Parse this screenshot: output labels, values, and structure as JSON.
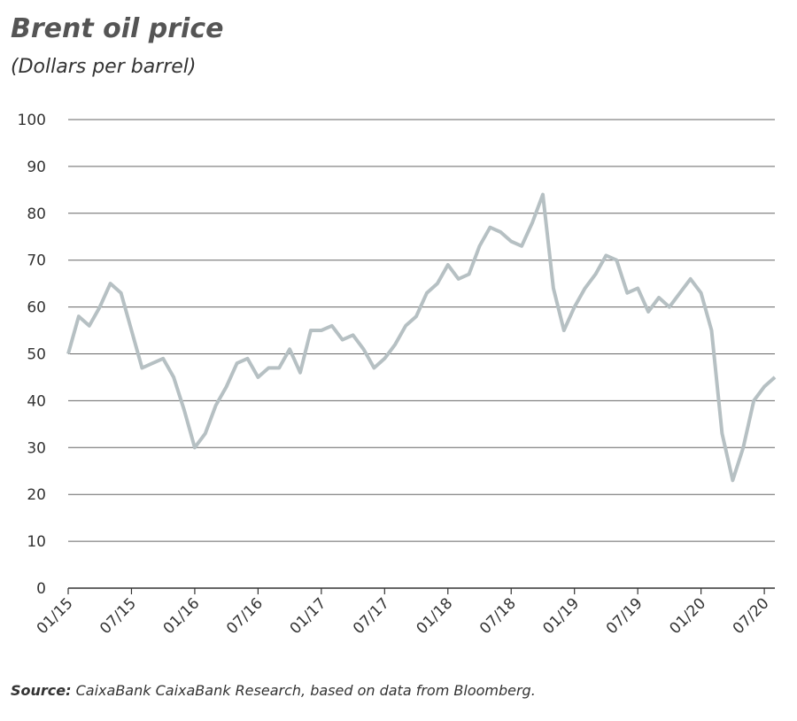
{
  "chart_data": {
    "type": "line",
    "title": "Brent oil price",
    "subtitle": "(Dollars per barrel)",
    "source_label": "Source:",
    "source": "CaixaBank CaixaBank Research, based on data from Bloomberg.",
    "x": [
      "01/15",
      "02/15",
      "03/15",
      "04/15",
      "05/15",
      "06/15",
      "07/15",
      "08/15",
      "09/15",
      "10/15",
      "11/15",
      "12/15",
      "01/16",
      "02/16",
      "03/16",
      "04/16",
      "05/16",
      "06/16",
      "07/16",
      "08/16",
      "09/16",
      "10/16",
      "11/16",
      "12/16",
      "01/17",
      "02/17",
      "03/17",
      "04/17",
      "05/17",
      "06/17",
      "07/17",
      "08/17",
      "09/17",
      "10/17",
      "11/17",
      "12/17",
      "01/18",
      "02/18",
      "03/18",
      "04/18",
      "05/18",
      "06/18",
      "07/18",
      "08/18",
      "09/18",
      "10/18",
      "11/18",
      "12/18",
      "01/19",
      "02/19",
      "03/19",
      "04/19",
      "05/19",
      "06/19",
      "07/19",
      "08/19",
      "09/19",
      "10/19",
      "11/19",
      "12/19",
      "01/20",
      "02/20",
      "03/20",
      "04/20",
      "05/20",
      "06/20",
      "07/20",
      "08/20"
    ],
    "series": [
      {
        "name": "Brent",
        "color": "#b6c0c3",
        "values": [
          50,
          58,
          56,
          60,
          65,
          63,
          55,
          47,
          48,
          49,
          45,
          38,
          30,
          33,
          39,
          43,
          48,
          49,
          45,
          47,
          47,
          51,
          46,
          55,
          55,
          56,
          53,
          54,
          51,
          47,
          49,
          52,
          56,
          58,
          63,
          65,
          69,
          66,
          67,
          73,
          77,
          76,
          74,
          73,
          78,
          84,
          64,
          55,
          60,
          64,
          67,
          71,
          70,
          63,
          64,
          59,
          62,
          60,
          63,
          66,
          63,
          55,
          33,
          23,
          30,
          40,
          43,
          45
        ]
      }
    ],
    "ylim": [
      0,
      100
    ],
    "yticks": [
      0,
      10,
      20,
      30,
      40,
      50,
      60,
      70,
      80,
      90,
      100
    ],
    "xticks": [
      "01/15",
      "07/15",
      "01/16",
      "07/16",
      "01/17",
      "07/17",
      "01/18",
      "07/18",
      "01/19",
      "07/19",
      "01/20",
      "07/20"
    ],
    "grid": true
  }
}
